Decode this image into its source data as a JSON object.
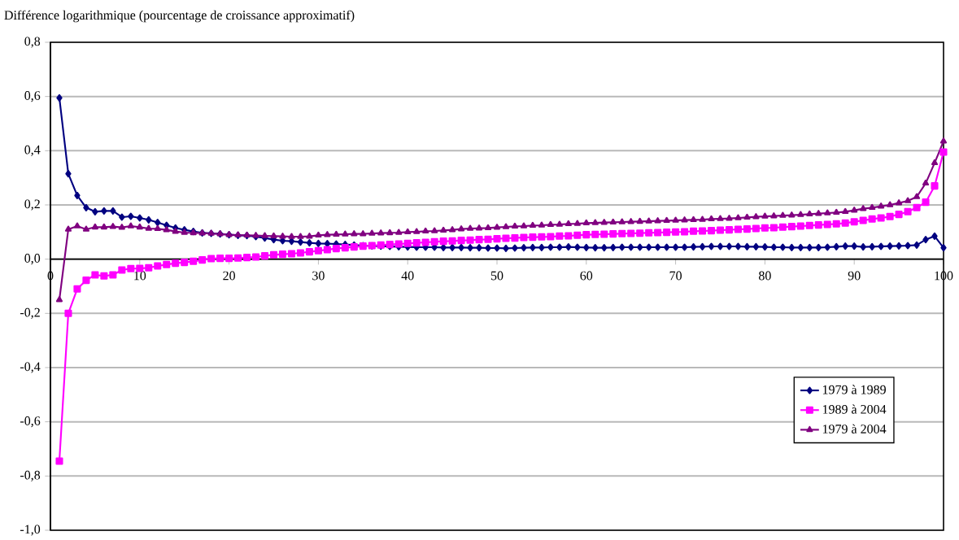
{
  "chart_data": {
    "type": "line",
    "ylabel": "Différence logarithmique (pourcentage de croissance approximatif)",
    "x": [
      1,
      2,
      3,
      4,
      5,
      6,
      7,
      8,
      9,
      10,
      11,
      12,
      13,
      14,
      15,
      16,
      17,
      18,
      19,
      20,
      21,
      22,
      23,
      24,
      25,
      26,
      27,
      28,
      29,
      30,
      31,
      32,
      33,
      34,
      35,
      36,
      37,
      38,
      39,
      40,
      41,
      42,
      43,
      44,
      45,
      46,
      47,
      48,
      49,
      50,
      51,
      52,
      53,
      54,
      55,
      56,
      57,
      58,
      59,
      60,
      61,
      62,
      63,
      64,
      65,
      66,
      67,
      68,
      69,
      70,
      71,
      72,
      73,
      74,
      75,
      76,
      77,
      78,
      79,
      80,
      81,
      82,
      83,
      84,
      85,
      86,
      87,
      88,
      89,
      90,
      91,
      92,
      93,
      94,
      95,
      96,
      97,
      98,
      99,
      100
    ],
    "series": [
      {
        "name": "1979 à 1989",
        "color": "#000080",
        "marker": "diamond",
        "values": [
          0.595,
          0.315,
          0.235,
          0.19,
          0.175,
          0.178,
          0.178,
          0.155,
          0.158,
          0.152,
          0.145,
          0.135,
          0.125,
          0.115,
          0.108,
          0.102,
          0.097,
          0.095,
          0.093,
          0.09,
          0.088,
          0.087,
          0.083,
          0.078,
          0.072,
          0.068,
          0.066,
          0.063,
          0.06,
          0.058,
          0.057,
          0.056,
          0.054,
          0.052,
          0.05,
          0.049,
          0.048,
          0.047,
          0.046,
          0.045,
          0.044,
          0.044,
          0.044,
          0.043,
          0.043,
          0.043,
          0.042,
          0.042,
          0.041,
          0.041,
          0.04,
          0.041,
          0.042,
          0.043,
          0.043,
          0.044,
          0.044,
          0.045,
          0.044,
          0.043,
          0.042,
          0.042,
          0.043,
          0.044,
          0.044,
          0.044,
          0.044,
          0.044,
          0.044,
          0.044,
          0.044,
          0.045,
          0.046,
          0.047,
          0.047,
          0.047,
          0.047,
          0.046,
          0.046,
          0.045,
          0.044,
          0.044,
          0.043,
          0.043,
          0.043,
          0.043,
          0.044,
          0.046,
          0.048,
          0.048,
          0.045,
          0.046,
          0.047,
          0.048,
          0.049,
          0.05,
          0.052,
          0.072,
          0.085,
          0.042
        ]
      },
      {
        "name": "1989 à 2004",
        "color": "#ff00ff",
        "marker": "square",
        "values": [
          -0.745,
          -0.2,
          -0.11,
          -0.078,
          -0.058,
          -0.062,
          -0.058,
          -0.04,
          -0.035,
          -0.034,
          -0.032,
          -0.025,
          -0.02,
          -0.015,
          -0.012,
          -0.008,
          -0.003,
          0.002,
          0.003,
          0.003,
          0.004,
          0.006,
          0.008,
          0.012,
          0.016,
          0.018,
          0.02,
          0.023,
          0.027,
          0.031,
          0.035,
          0.039,
          0.042,
          0.045,
          0.048,
          0.05,
          0.052,
          0.054,
          0.056,
          0.058,
          0.06,
          0.062,
          0.064,
          0.066,
          0.067,
          0.069,
          0.07,
          0.072,
          0.073,
          0.075,
          0.077,
          0.078,
          0.08,
          0.081,
          0.082,
          0.083,
          0.085,
          0.086,
          0.088,
          0.09,
          0.091,
          0.092,
          0.093,
          0.094,
          0.095,
          0.096,
          0.097,
          0.098,
          0.099,
          0.1,
          0.101,
          0.103,
          0.104,
          0.105,
          0.107,
          0.108,
          0.11,
          0.111,
          0.113,
          0.115,
          0.116,
          0.118,
          0.12,
          0.122,
          0.124,
          0.126,
          0.128,
          0.13,
          0.133,
          0.138,
          0.143,
          0.148,
          0.152,
          0.157,
          0.165,
          0.175,
          0.19,
          0.21,
          0.27,
          0.395
        ]
      },
      {
        "name": "1979 à 2004",
        "color": "#800080",
        "marker": "triangle",
        "values": [
          -0.15,
          0.11,
          0.122,
          0.11,
          0.118,
          0.118,
          0.12,
          0.117,
          0.122,
          0.118,
          0.113,
          0.112,
          0.108,
          0.102,
          0.098,
          0.097,
          0.096,
          0.095,
          0.093,
          0.09,
          0.089,
          0.088,
          0.087,
          0.086,
          0.085,
          0.084,
          0.083,
          0.083,
          0.084,
          0.088,
          0.09,
          0.091,
          0.092,
          0.093,
          0.093,
          0.095,
          0.096,
          0.097,
          0.098,
          0.1,
          0.101,
          0.103,
          0.104,
          0.106,
          0.108,
          0.111,
          0.113,
          0.114,
          0.115,
          0.117,
          0.119,
          0.121,
          0.122,
          0.124,
          0.125,
          0.127,
          0.128,
          0.13,
          0.131,
          0.133,
          0.134,
          0.135,
          0.136,
          0.137,
          0.138,
          0.139,
          0.14,
          0.141,
          0.142,
          0.143,
          0.144,
          0.145,
          0.146,
          0.148,
          0.149,
          0.15,
          0.152,
          0.154,
          0.156,
          0.158,
          0.159,
          0.161,
          0.162,
          0.164,
          0.166,
          0.168,
          0.17,
          0.172,
          0.175,
          0.18,
          0.186,
          0.19,
          0.195,
          0.2,
          0.207,
          0.215,
          0.23,
          0.28,
          0.355,
          0.435
        ]
      }
    ],
    "xlim": [
      0,
      100
    ],
    "xticks": [
      0,
      10,
      20,
      30,
      40,
      50,
      60,
      70,
      80,
      90,
      100
    ],
    "ylim": [
      -1.0,
      0.8
    ],
    "yticks": [
      {
        "value": -1.0,
        "label": "-1,0"
      },
      {
        "value": -0.8,
        "label": "-0,8"
      },
      {
        "value": -0.6,
        "label": "-0,6"
      },
      {
        "value": -0.4,
        "label": "-0,4"
      },
      {
        "value": -0.2,
        "label": "-0,2"
      },
      {
        "value": 0.0,
        "label": "0,0"
      },
      {
        "value": 0.2,
        "label": "0,2"
      },
      {
        "value": 0.4,
        "label": "0,4"
      },
      {
        "value": 0.6,
        "label": "0,6"
      },
      {
        "value": 0.8,
        "label": "0,8"
      }
    ],
    "grid": "y",
    "legend": "right",
    "line_style": "solid"
  }
}
